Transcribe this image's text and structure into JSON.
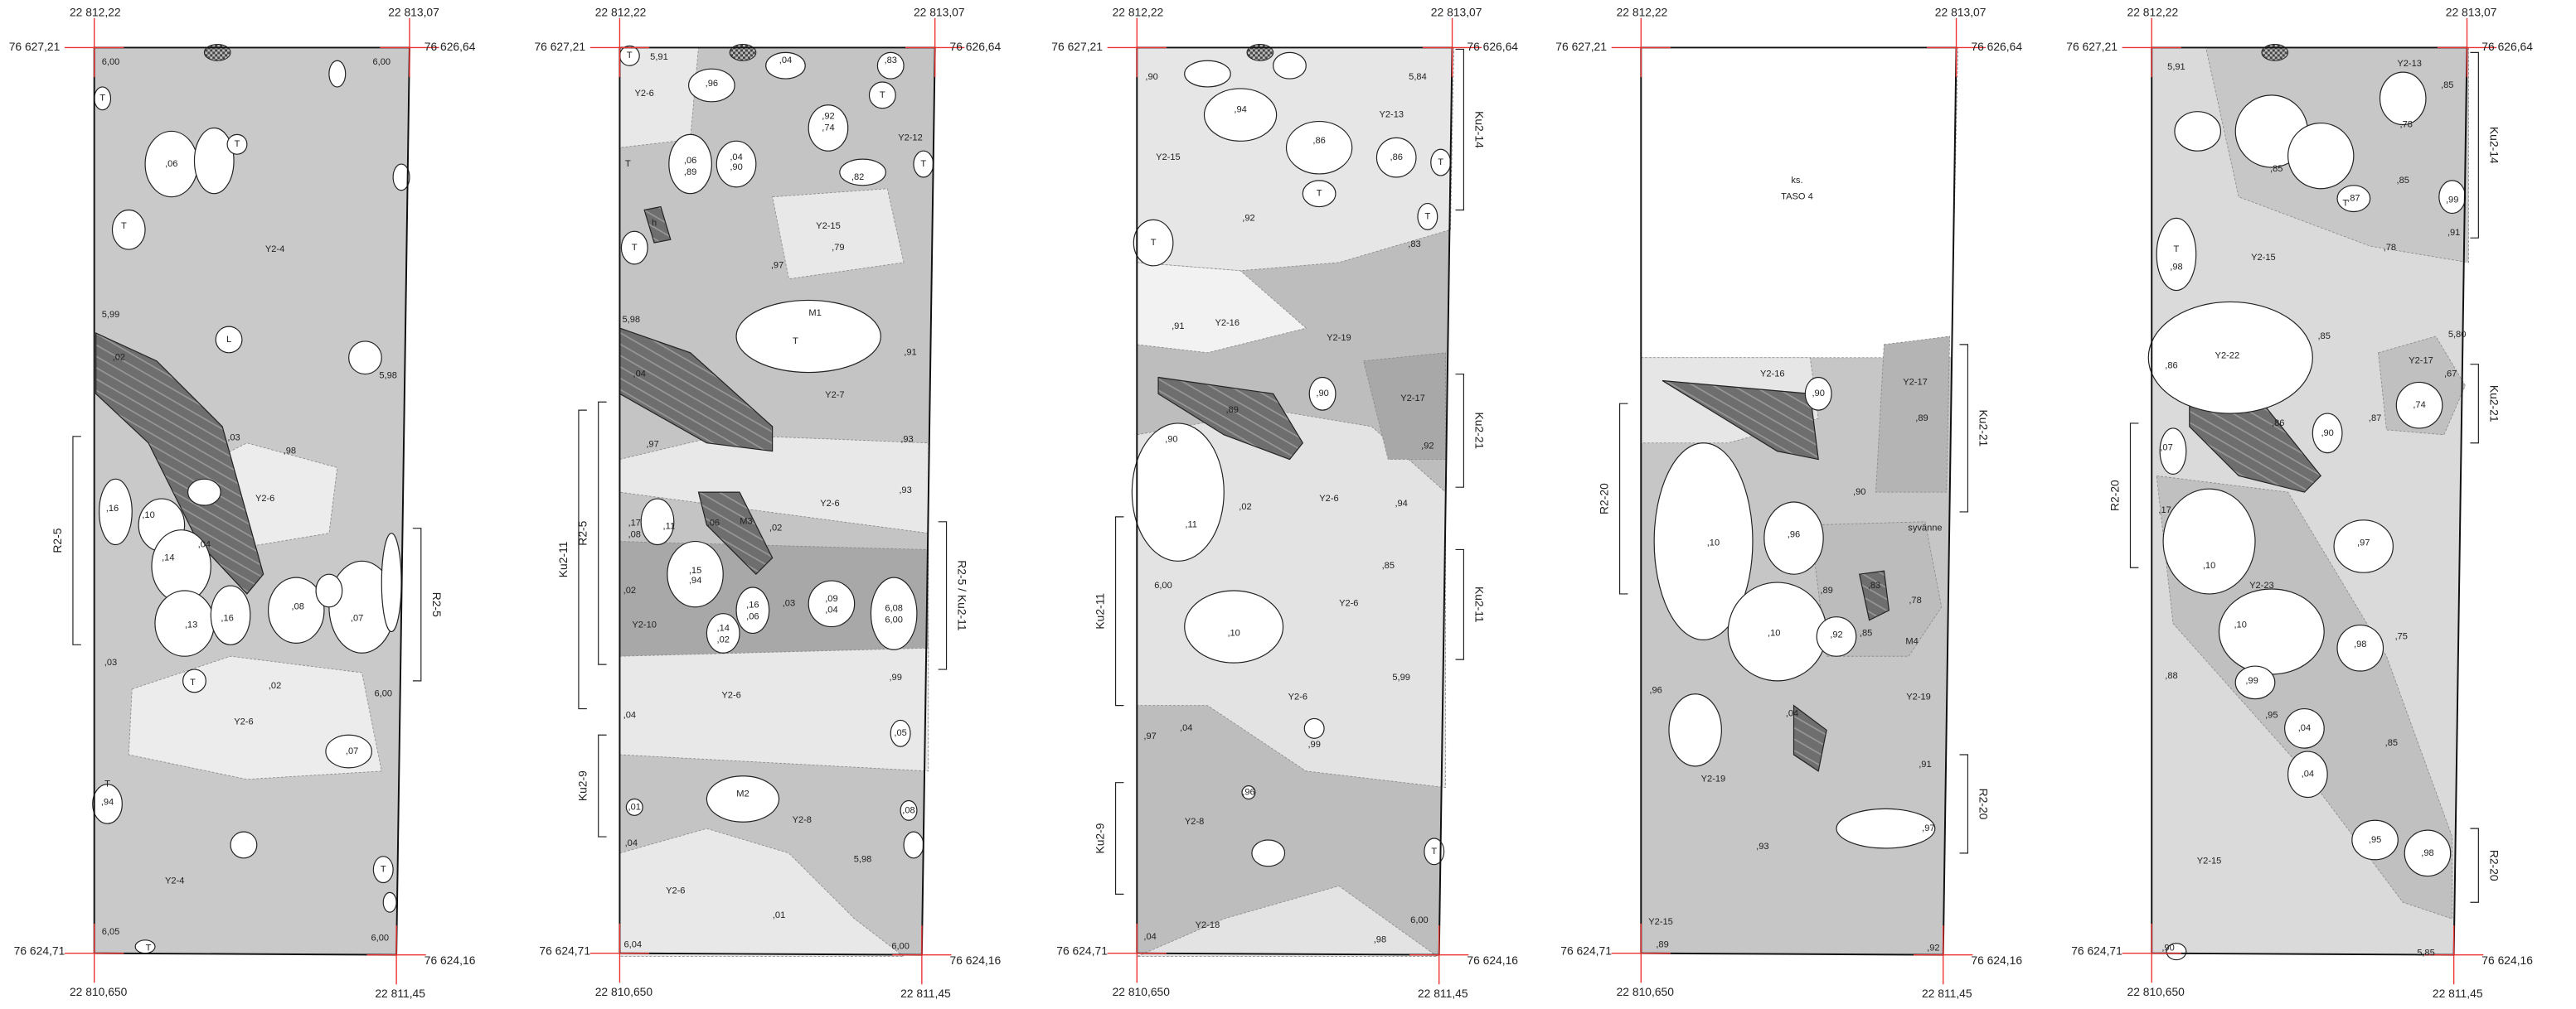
{
  "panels": [
    {
      "coords": {
        "top_left_x": "22 812,22",
        "top_right_x": "22 813,07",
        "left_top_y": "76 627,21",
        "right_top_y": "76 626,64",
        "left_bottom_y": "76 624,71",
        "right_bottom_y": "76 624,16",
        "bottom_left_x": "22 810,650",
        "bottom_right_x": "22 811,45"
      },
      "sections": [
        "R2-5",
        "R2-5"
      ],
      "labels": [
        "6,00",
        "6,00",
        "T",
        ",06",
        "T",
        "T",
        "Y2-4",
        "5,99",
        "L",
        ",02",
        "5,98",
        ",03",
        ",98",
        "Y2-6",
        ",16",
        ",10",
        ",04",
        ",14",
        ",08",
        ",07",
        ",13",
        ",16",
        ",03",
        "T",
        ",02",
        "6,00",
        "Y2-6",
        ",07",
        "T",
        ",94",
        "Y2-4",
        "T",
        "6,05",
        "6,00",
        "T"
      ]
    },
    {
      "coords": {
        "top_left_x": "22 812,22",
        "top_right_x": "22 813,07",
        "left_top_y": "76 627,21",
        "right_top_y": "76 626,64",
        "left_bottom_y": "76 624,71",
        "right_bottom_y": "76 624,16",
        "bottom_left_x": "22 810,650",
        "bottom_right_x": "22 811,45"
      },
      "sections": [
        "R2-5",
        "Ku2-11",
        "Ku2-9",
        "R2-5 / Ku2-11"
      ],
      "labels": [
        "T",
        "5,91",
        ",04",
        ",83",
        "Y2-6",
        ",96",
        "T",
        ",92",
        ",74",
        "Y2-12",
        "T",
        ",06",
        ",89",
        ",04",
        ",90",
        "T",
        ",82",
        "h",
        "Y2-15",
        "T",
        ",79",
        ",97",
        "M1",
        "T",
        ",91",
        "5,98",
        ",04",
        "Y2-7",
        ",97",
        ",93",
        ",93",
        "Y2-6",
        ",17",
        ",08",
        ",11",
        ",06",
        "M3",
        ",02",
        ",15",
        ",94",
        ",02",
        ",14",
        ",02",
        ",16",
        ",06",
        ",03",
        ",09",
        ",04",
        "6,08",
        "6,00",
        "Y2-10",
        ",99",
        "Y2-6",
        ",04",
        ",05",
        "M2",
        ",01",
        "Y2-8",
        ",08",
        ",04",
        "5,98",
        "Y2-6",
        ",01",
        "6,04",
        "6,00"
      ]
    },
    {
      "coords": {
        "top_left_x": "22 812,22",
        "top_right_x": "22 813,07",
        "left_top_y": "76 627,21",
        "right_top_y": "76 626,64",
        "left_bottom_y": "76 624,71",
        "right_bottom_y": "76 624,16",
        "bottom_left_x": "22 810,650",
        "bottom_right_x": "22 811,45"
      },
      "sections": [
        "Ku2-14",
        "Ku2-21",
        "Ku2-11",
        "Ku2-11",
        "Ku2-9"
      ],
      "labels": [
        ",90",
        "5,84",
        ",94",
        "Y2-13",
        "Y2-15",
        ",86",
        ",86",
        "T",
        "T",
        "T",
        ",92",
        ",83",
        "T",
        ",91",
        "Y2-16",
        "Y2-19",
        ",90",
        "Y2-17",
        ",89",
        ",90",
        ",92",
        ",02",
        "Y2-6",
        ",94",
        ",11",
        ",85",
        "6,00",
        "Y2-6",
        ",10",
        "5,99",
        "Y2-6",
        ",04",
        ",97",
        ",99",
        ",96",
        "Y2-8",
        "T",
        "6,00",
        "Y2-18",
        ",04",
        ",98"
      ]
    },
    {
      "coords": {
        "top_left_x": "22 812,22",
        "top_right_x": "22 813,07",
        "left_top_y": "76 627,21",
        "right_top_y": "76 626,64",
        "left_bottom_y": "76 624,71",
        "right_bottom_y": "76 624,16",
        "bottom_left_x": "22 810,650",
        "bottom_right_x": "22 811,45"
      },
      "sections": [
        "Ku2-21",
        "R2-20",
        "R2-20"
      ],
      "labels": [
        "ks.",
        "TASO 4",
        "Y2-16",
        ",90",
        "Y2-17",
        ",89",
        ",90",
        ",10",
        ",96",
        "syvänne",
        ",83",
        ",89",
        ",78",
        ",10",
        ",92",
        ",85",
        "M4",
        "Y2-19",
        ",96",
        ",04",
        ",91",
        "Y2-19",
        ",97",
        ",93",
        "Y2-15",
        ",89",
        ",92"
      ]
    },
    {
      "coords": {
        "top_left_x": "22 812,22",
        "top_right_x": "22 813,07",
        "left_top_y": "76 627,21",
        "right_top_y": "76 626,64",
        "left_bottom_y": "76 624,71",
        "right_bottom_y": "76 624,16",
        "bottom_left_x": "22 810,650",
        "bottom_right_x": "22 811,45"
      },
      "sections": [
        "Ku2-14",
        "Ku2-21",
        "R2-20",
        "R2-20"
      ],
      "labels": [
        "5,91",
        "Y2-13",
        ",85",
        ",78",
        ",85",
        ",85",
        ",87",
        "T",
        ",99",
        ",91",
        "T",
        ",98",
        "Y2-15",
        ",78",
        ",85",
        "5,80",
        "Y2-22",
        "Y2-17",
        ",67",
        ",86",
        ",74",
        ",90",
        ",87",
        ",86",
        ",07",
        ",17",
        ",97",
        ",10",
        "Y2-23",
        ",10",
        ",75",
        ",98",
        ",99",
        ",88",
        ",95",
        ",04",
        ",85",
        ",04",
        ",95",
        ",98",
        "Y2-15",
        ",90",
        "5,85"
      ]
    }
  ]
}
